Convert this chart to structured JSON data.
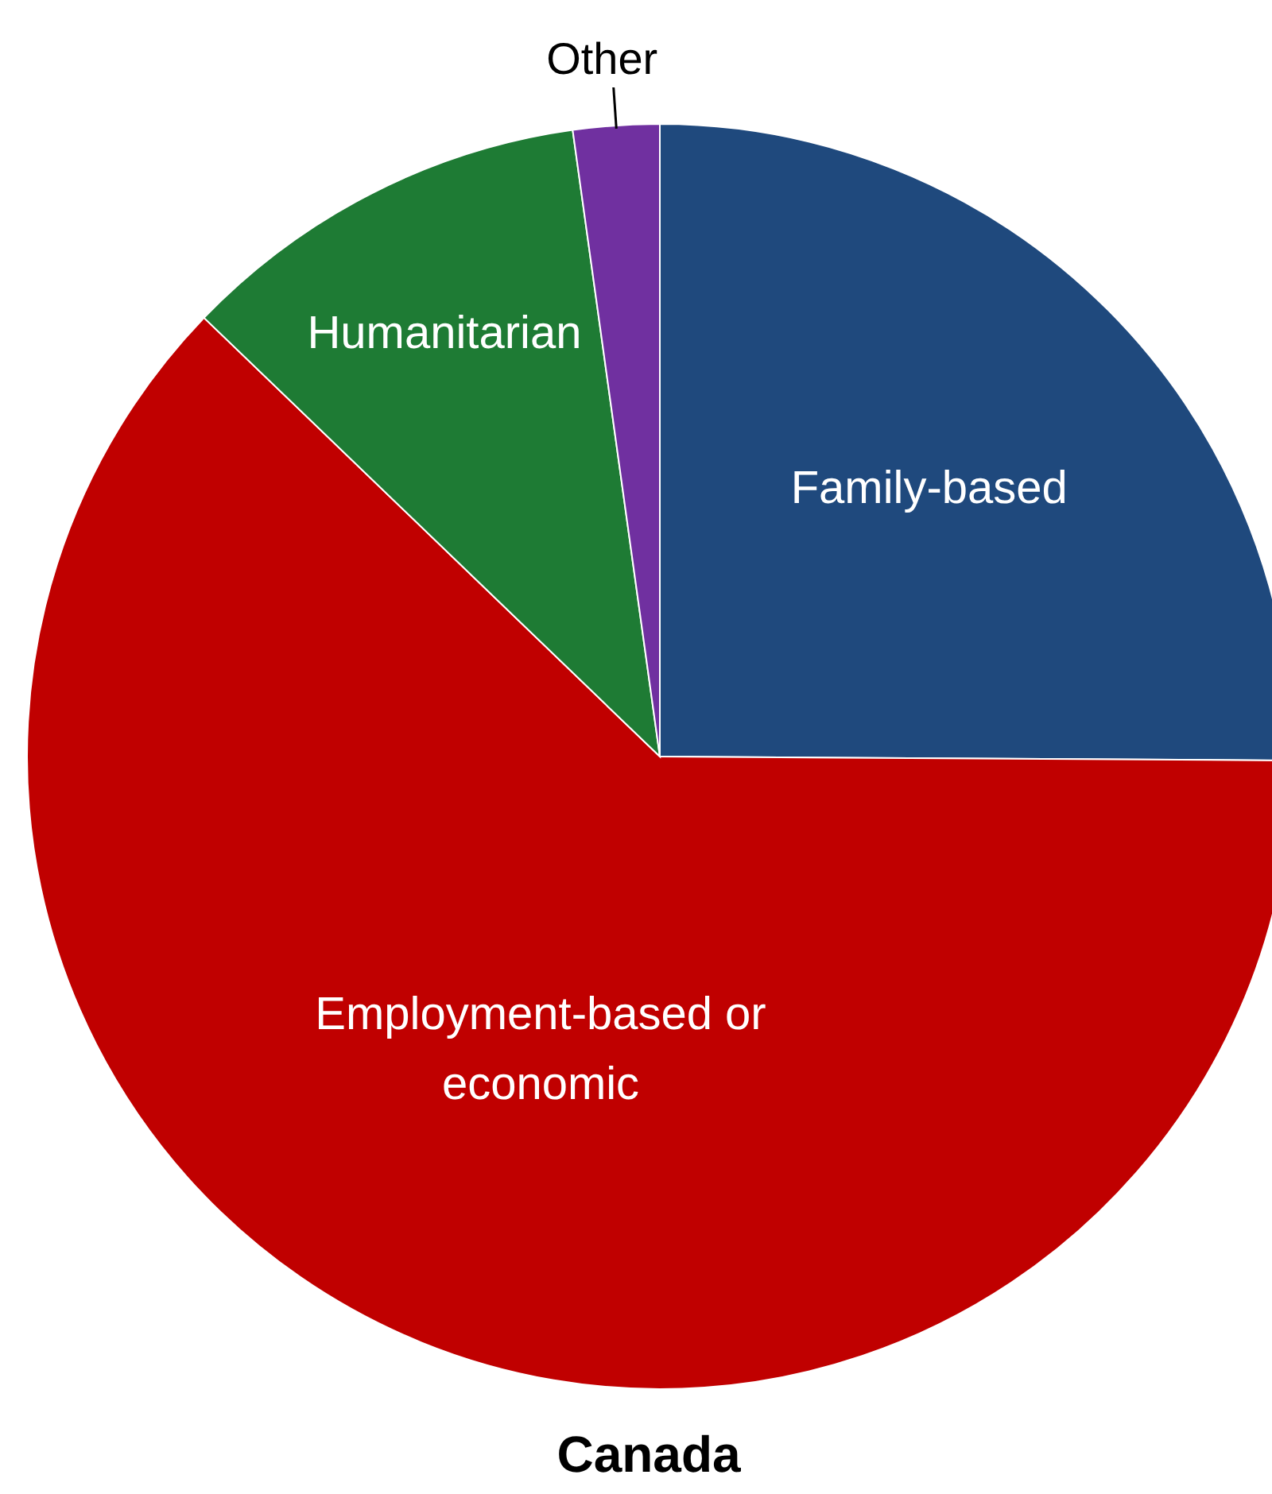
{
  "chart_data": {
    "type": "pie",
    "title": "Canada",
    "categories": [
      "Family-based",
      "Employment-based or economic",
      "Humanitarian",
      "Other"
    ],
    "values": [
      25.1,
      62.1,
      10.6,
      2.2
    ],
    "colors": [
      "#1f497d",
      "#c00000",
      "#1e7b34",
      "#7030a0"
    ]
  }
}
